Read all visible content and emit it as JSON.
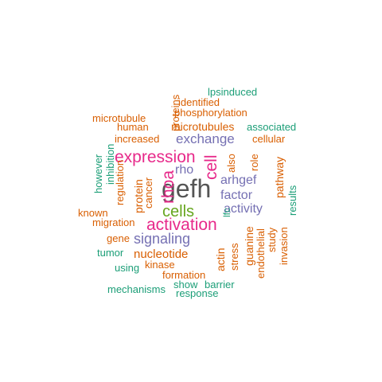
{
  "palette": {
    "gray": "#555555",
    "magenta": "#e7298a",
    "purple": "#7570b3",
    "green": "#66a61e",
    "orange": "#d95f02",
    "teal": "#1b9e77"
  },
  "words": [
    {
      "text": "gefh",
      "color": "#555555",
      "rotated": false
    },
    {
      "text": "activation",
      "color": "#e7298a",
      "rotated": false
    },
    {
      "text": "expression",
      "color": "#e7298a",
      "rotated": false
    },
    {
      "text": "rhoa",
      "color": "#e7298a",
      "rotated": true
    },
    {
      "text": "cell",
      "color": "#e7298a",
      "rotated": true
    },
    {
      "text": "cells",
      "color": "#66a61e",
      "rotated": false
    },
    {
      "text": "signaling",
      "color": "#7570b3",
      "rotated": false
    },
    {
      "text": "exchange",
      "color": "#7570b3",
      "rotated": false
    },
    {
      "text": "rho",
      "color": "#7570b3",
      "rotated": false
    },
    {
      "text": "arhgef",
      "color": "#7570b3",
      "rotated": false
    },
    {
      "text": "factor",
      "color": "#7570b3",
      "rotated": false
    },
    {
      "text": "activity",
      "color": "#7570b3",
      "rotated": false
    },
    {
      "text": "nucleotide",
      "color": "#d95f02",
      "rotated": false
    },
    {
      "text": "microtubules",
      "color": "#d95f02",
      "rotated": false
    },
    {
      "text": "phosphorylation",
      "color": "#d95f02",
      "rotated": false
    },
    {
      "text": "protein",
      "color": "#d95f02",
      "rotated": true
    },
    {
      "text": "pathway",
      "color": "#d95f02",
      "rotated": true
    },
    {
      "text": "guanine",
      "color": "#d95f02",
      "rotated": true
    },
    {
      "text": "actin",
      "color": "#d95f02",
      "rotated": true
    },
    {
      "text": "microtubule",
      "color": "#d95f02",
      "rotated": false
    },
    {
      "text": "increased",
      "color": "#d95f02",
      "rotated": false
    },
    {
      "text": "identified",
      "color": "#d95f02",
      "rotated": false
    },
    {
      "text": "cellular",
      "color": "#d95f02",
      "rotated": false
    },
    {
      "text": "human",
      "color": "#d95f02",
      "rotated": false
    },
    {
      "text": "proteins",
      "color": "#d95f02",
      "rotated": true
    },
    {
      "text": "also",
      "color": "#d95f02",
      "rotated": true
    },
    {
      "text": "role",
      "color": "#d95f02",
      "rotated": true
    },
    {
      "text": "cancer",
      "color": "#d95f02",
      "rotated": true
    },
    {
      "text": "regulation",
      "color": "#d95f02",
      "rotated": true
    },
    {
      "text": "known",
      "color": "#d95f02",
      "rotated": false
    },
    {
      "text": "migration",
      "color": "#d95f02",
      "rotated": false
    },
    {
      "text": "gene",
      "color": "#d95f02",
      "rotated": false
    },
    {
      "text": "kinase",
      "color": "#d95f02",
      "rotated": false
    },
    {
      "text": "formation",
      "color": "#d95f02",
      "rotated": false
    },
    {
      "text": "stress",
      "color": "#d95f02",
      "rotated": true
    },
    {
      "text": "endothelial",
      "color": "#d95f02",
      "rotated": true
    },
    {
      "text": "study",
      "color": "#d95f02",
      "rotated": true
    },
    {
      "text": "invasion",
      "color": "#d95f02",
      "rotated": true
    },
    {
      "text": "lpsinduced",
      "color": "#1b9e77",
      "rotated": false
    },
    {
      "text": "associated",
      "color": "#1b9e77",
      "rotated": false
    },
    {
      "text": "however",
      "color": "#1b9e77",
      "rotated": true
    },
    {
      "text": "inhibition",
      "color": "#1b9e77",
      "rotated": true
    },
    {
      "text": "results",
      "color": "#1b9e77",
      "rotated": true
    },
    {
      "text": "lfc",
      "color": "#1b9e77",
      "rotated": true
    },
    {
      "text": "tumor",
      "color": "#1b9e77",
      "rotated": false
    },
    {
      "text": "using",
      "color": "#1b9e77",
      "rotated": false
    },
    {
      "text": "mechanisms",
      "color": "#1b9e77",
      "rotated": false
    },
    {
      "text": "show",
      "color": "#1b9e77",
      "rotated": false
    },
    {
      "text": "barrier",
      "color": "#1b9e77",
      "rotated": false
    },
    {
      "text": "response",
      "color": "#1b9e77",
      "rotated": false
    }
  ]
}
